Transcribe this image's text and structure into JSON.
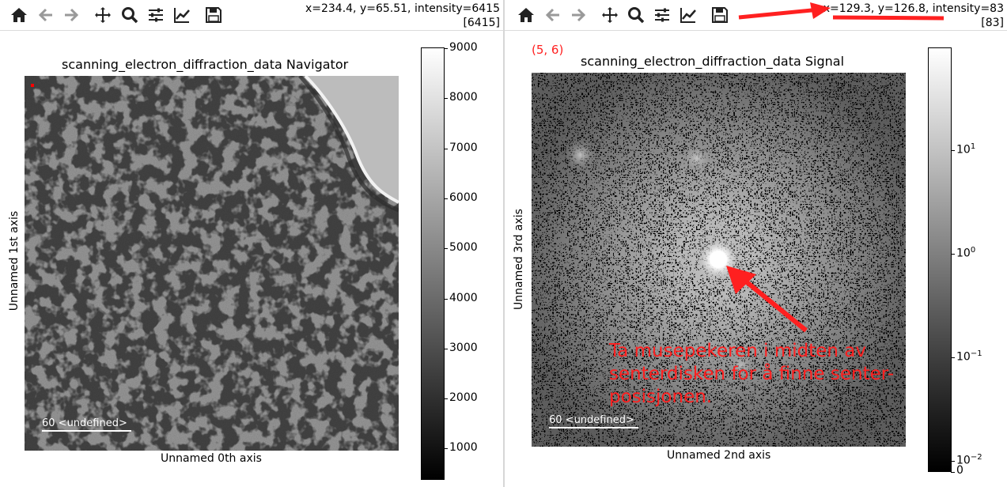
{
  "left_window": {
    "coords_line1": "x=234.4, y=65.51, intensity=6415",
    "coords_line2": "[6415]",
    "title": "scanning_electron_diffraction_data Navigator",
    "xlabel": "Unnamed 0th axis",
    "ylabel": "Unnamed 1st axis",
    "scalebar_label": "60 <undefined>",
    "colorbar_ticks": [
      "9000",
      "8000",
      "7000",
      "6000",
      "5000",
      "4000",
      "3000",
      "2000",
      "1000"
    ]
  },
  "right_window": {
    "coords_line1": "x=129.3, y=126.8, intensity=83",
    "coords_line2": "[83]",
    "position_label": "(5, 6)",
    "title": "scanning_electron_diffraction_data Signal",
    "xlabel": "Unnamed 2nd axis",
    "ylabel": "Unnamed 3rd axis",
    "scalebar_label": "60 <undefined>",
    "annotation": "Ta musepekeren i midten av senterdisken for å finne senter-posisjonen.",
    "colorbar_ticks": [
      {
        "base": "10",
        "exp": "1"
      },
      {
        "base": "10",
        "exp": "0"
      },
      {
        "base": "10",
        "exp": "−1"
      },
      {
        "base": "10",
        "exp": "−2"
      },
      {
        "base": "0",
        "exp": ""
      }
    ]
  },
  "toolbar": {
    "buttons": [
      "home-icon",
      "back-arrow-icon",
      "forward-arrow-icon",
      "pan-icon",
      "zoom-icon",
      "configure-subplots-icon",
      "edit-axis-icon",
      "save-icon"
    ]
  },
  "colors": {
    "annotation": "#ff2020"
  }
}
